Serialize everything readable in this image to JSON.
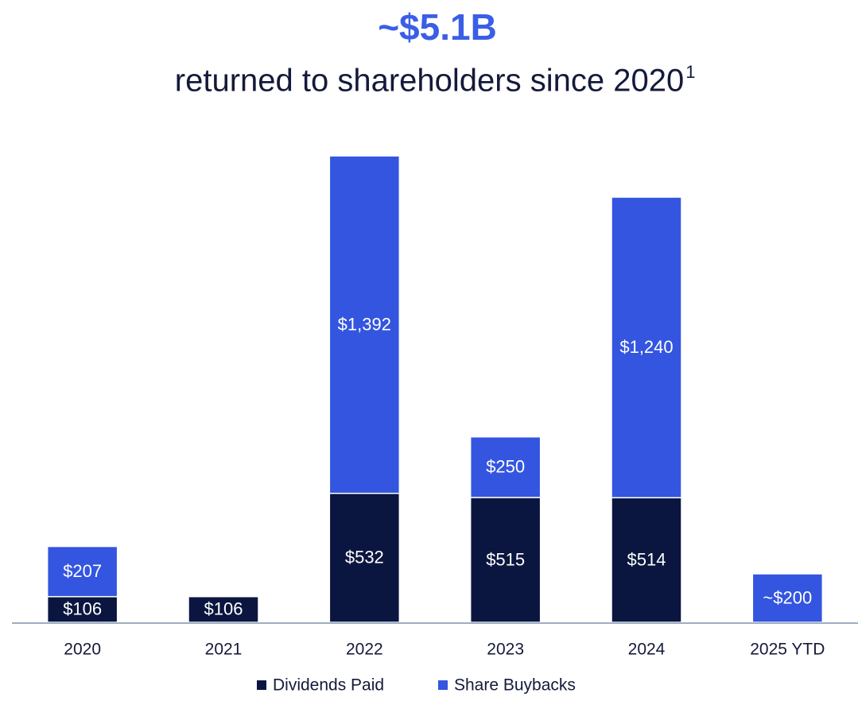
{
  "chart_data": {
    "type": "stacked_bar",
    "title": "~$5.1B",
    "subtitle": "returned to shareholders since 2020",
    "subtitle_footnote": "1",
    "categories": [
      "2020",
      "2021",
      "2022",
      "2023",
      "2024",
      "2025 YTD"
    ],
    "series": [
      {
        "name": "Dividends Paid",
        "color": "#0b1640",
        "values": [
          106,
          106,
          532,
          515,
          514,
          null
        ],
        "value_labels": [
          "$106",
          "$106",
          "$532",
          "$515",
          "$514",
          null
        ]
      },
      {
        "name": "Share Buybacks",
        "color": "#3355e0",
        "values": [
          207,
          null,
          1392,
          250,
          1240,
          200
        ],
        "value_labels": [
          "$207",
          null,
          "$1,392",
          "$250",
          "$1,240",
          "~$200"
        ]
      }
    ],
    "ylim": [
      0,
      2000
    ],
    "legend": "bottom"
  }
}
